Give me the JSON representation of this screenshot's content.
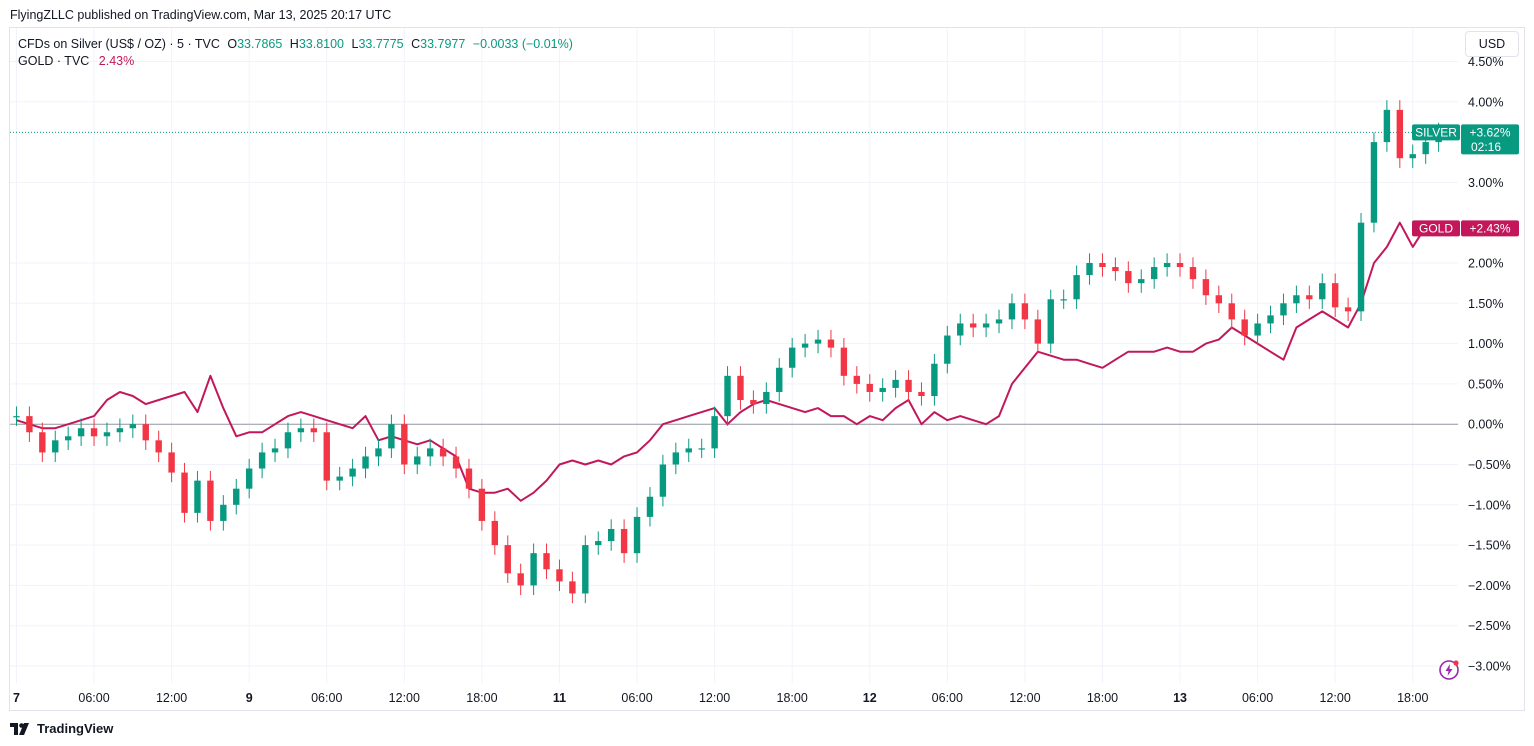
{
  "header": {
    "published": "FlyingZLLC published on TradingView.com, Mar 13, 2025 20:17 UTC"
  },
  "legend": {
    "silver_name": "CFDs on Silver (US$ / OZ) · 5 · TVC",
    "o_label": "O",
    "o_value": "33.7865",
    "h_label": "H",
    "h_value": "33.8100",
    "l_label": "L",
    "l_value": "33.7775",
    "c_label": "C",
    "c_value": "33.7977",
    "change": "−0.0033 (−0.01%)",
    "gold_name": "GOLD · TVC",
    "gold_value": "2.43%"
  },
  "currency_button": "USD",
  "footer": {
    "brand": "TradingView",
    "logo": "tradingview-logo-icon"
  },
  "colors": {
    "up": "#089981",
    "down": "#f23645",
    "gold": "#c2185b",
    "grid": "#f0f3fa",
    "axis_text": "#131722"
  },
  "chart_data": {
    "type": "line",
    "title": "",
    "xlabel": "",
    "ylabel": "",
    "ylim": [
      -3.2,
      4.6
    ],
    "x_ticks": [
      {
        "label": "7",
        "t": 0.0,
        "bold": true
      },
      {
        "label": "06:00",
        "t": 6.0
      },
      {
        "label": "12:00",
        "t": 12.0
      },
      {
        "label": "9",
        "t": 18.0,
        "bold": true
      },
      {
        "label": "06:00",
        "t": 24.0
      },
      {
        "label": "12:00",
        "t": 30.0
      },
      {
        "label": "18:00",
        "t": 36.0
      },
      {
        "label": "11",
        "t": 42.0,
        "bold": true
      },
      {
        "label": "06:00",
        "t": 48.0
      },
      {
        "label": "12:00",
        "t": 54.0
      },
      {
        "label": "18:00",
        "t": 60.0
      },
      {
        "label": "12",
        "t": 66.0,
        "bold": true
      },
      {
        "label": "06:00",
        "t": 72.0
      },
      {
        "label": "12:00",
        "t": 78.0
      },
      {
        "label": "18:00",
        "t": 84.0
      },
      {
        "label": "13",
        "t": 90.0,
        "bold": true
      },
      {
        "label": "06:00",
        "t": 96.0
      },
      {
        "label": "12:00",
        "t": 102.0
      },
      {
        "label": "18:00",
        "t": 108.0
      }
    ],
    "y_ticks": [
      "4.50%",
      "4.00%",
      "3.00%",
      "2.00%",
      "1.50%",
      "1.00%",
      "0.50%",
      "0.00%",
      "−0.50%",
      "−1.00%",
      "−1.50%",
      "−2.00%",
      "−2.50%",
      "−3.00%"
    ],
    "y_tick_values": [
      4.5,
      4.0,
      3.0,
      2.0,
      1.5,
      1.0,
      0.5,
      0.0,
      -0.5,
      -1.0,
      -1.5,
      -2.0,
      -2.5,
      -3.0
    ],
    "series": [
      {
        "name": "SILVER",
        "style": "candles",
        "t": [
          0,
          1,
          2,
          3,
          4,
          5,
          6,
          7,
          8,
          9,
          10,
          11,
          12,
          13,
          14,
          15,
          16,
          17,
          18,
          19,
          20,
          21,
          22,
          23,
          24,
          25,
          26,
          27,
          28,
          29,
          30,
          31,
          32,
          33,
          34,
          35,
          36,
          37,
          38,
          39,
          40,
          41,
          42,
          43,
          44,
          45,
          46,
          47,
          48,
          49,
          50,
          51,
          52,
          53,
          54,
          55,
          56,
          57,
          58,
          59,
          60,
          61,
          62,
          63,
          64,
          65,
          66,
          67,
          68,
          69,
          70,
          71,
          72,
          73,
          74,
          75,
          76,
          77,
          78,
          79,
          80,
          81,
          82,
          83,
          84,
          85,
          86,
          87,
          88,
          89,
          90,
          91,
          92,
          93,
          94,
          95,
          96,
          97,
          98,
          99,
          100,
          101,
          102,
          103,
          104,
          105,
          106,
          107,
          108,
          109,
          110
        ],
        "values": [
          0.1,
          -0.1,
          -0.35,
          -0.2,
          -0.15,
          -0.05,
          -0.15,
          -0.1,
          -0.05,
          0.0,
          -0.2,
          -0.35,
          -0.6,
          -1.1,
          -0.7,
          -1.2,
          -1.0,
          -0.8,
          -0.55,
          -0.35,
          -0.3,
          -0.1,
          -0.05,
          -0.1,
          -0.7,
          -0.65,
          -0.55,
          -0.4,
          -0.3,
          -0.0,
          -0.5,
          -0.4,
          -0.3,
          -0.4,
          -0.55,
          -0.8,
          -1.2,
          -1.5,
          -1.85,
          -2.0,
          -1.6,
          -1.8,
          -1.95,
          -2.1,
          -1.5,
          -1.45,
          -1.3,
          -1.6,
          -1.15,
          -0.9,
          -0.5,
          -0.35,
          -0.3,
          -0.3,
          0.1,
          0.6,
          0.3,
          0.25,
          0.4,
          0.7,
          0.95,
          1.0,
          1.05,
          0.95,
          0.6,
          0.5,
          0.4,
          0.45,
          0.55,
          0.4,
          0.35,
          0.75,
          1.1,
          1.25,
          1.2,
          1.25,
          1.3,
          1.5,
          1.3,
          1.0,
          1.55,
          1.55,
          1.85,
          2.0,
          1.95,
          1.9,
          1.75,
          1.8,
          1.95,
          2.0,
          1.95,
          1.8,
          1.6,
          1.5,
          1.3,
          1.1,
          1.25,
          1.35,
          1.5,
          1.6,
          1.55,
          1.75,
          1.45,
          1.4,
          2.5,
          3.5,
          3.9,
          3.3,
          3.35,
          3.5,
          3.62
        ]
      },
      {
        "name": "GOLD",
        "style": "line",
        "t": [
          0,
          1,
          2,
          3,
          4,
          5,
          6,
          7,
          8,
          9,
          10,
          11,
          12,
          13,
          14,
          15,
          16,
          17,
          18,
          19,
          20,
          21,
          22,
          23,
          24,
          25,
          26,
          27,
          28,
          29,
          30,
          31,
          32,
          33,
          34,
          35,
          36,
          37,
          38,
          39,
          40,
          41,
          42,
          43,
          44,
          45,
          46,
          47,
          48,
          49,
          50,
          51,
          52,
          53,
          54,
          55,
          56,
          57,
          58,
          59,
          60,
          61,
          62,
          63,
          64,
          65,
          66,
          67,
          68,
          69,
          70,
          71,
          72,
          73,
          74,
          75,
          76,
          77,
          78,
          79,
          80,
          81,
          82,
          83,
          84,
          85,
          86,
          87,
          88,
          89,
          90,
          91,
          92,
          93,
          94,
          95,
          96,
          97,
          98,
          99,
          100,
          101,
          102,
          103,
          104,
          105,
          106,
          107,
          108,
          109,
          110
        ],
        "values": [
          0.05,
          0.0,
          -0.05,
          -0.05,
          0.0,
          0.05,
          0.1,
          0.3,
          0.4,
          0.35,
          0.25,
          0.3,
          0.35,
          0.4,
          0.15,
          0.6,
          0.2,
          -0.15,
          -0.1,
          -0.1,
          0.0,
          0.1,
          0.15,
          0.1,
          0.05,
          0.0,
          -0.05,
          0.1,
          -0.2,
          -0.15,
          -0.2,
          -0.25,
          -0.2,
          -0.3,
          -0.4,
          -0.8,
          -0.85,
          -0.85,
          -0.8,
          -0.95,
          -0.85,
          -0.7,
          -0.5,
          -0.45,
          -0.5,
          -0.45,
          -0.5,
          -0.4,
          -0.35,
          -0.2,
          0.0,
          0.05,
          0.1,
          0.15,
          0.2,
          0.0,
          0.15,
          0.25,
          0.3,
          0.25,
          0.2,
          0.15,
          0.2,
          0.1,
          0.1,
          0.0,
          0.1,
          0.05,
          0.2,
          0.3,
          0.0,
          0.15,
          0.05,
          0.1,
          0.05,
          0.0,
          0.1,
          0.5,
          0.7,
          0.9,
          0.85,
          0.8,
          0.8,
          0.75,
          0.7,
          0.8,
          0.9,
          0.9,
          0.9,
          0.95,
          0.9,
          0.9,
          1.0,
          1.05,
          1.2,
          1.1,
          1.0,
          0.9,
          0.8,
          1.2,
          1.3,
          1.4,
          1.3,
          1.2,
          1.5,
          2.0,
          2.2,
          2.5,
          2.2,
          2.45,
          2.43
        ]
      }
    ],
    "price_labels": [
      {
        "series": "SILVER",
        "name": "SILVER",
        "value_text": "+3.62%",
        "countdown": "02:16",
        "value": 3.62
      },
      {
        "series": "GOLD",
        "name": "GOLD",
        "value_text": "+2.43%",
        "value": 2.43
      }
    ],
    "baseline": 0.0,
    "x_range": [
      -0.5,
      111.5
    ],
    "grid": true,
    "legend_position": "top-left"
  }
}
